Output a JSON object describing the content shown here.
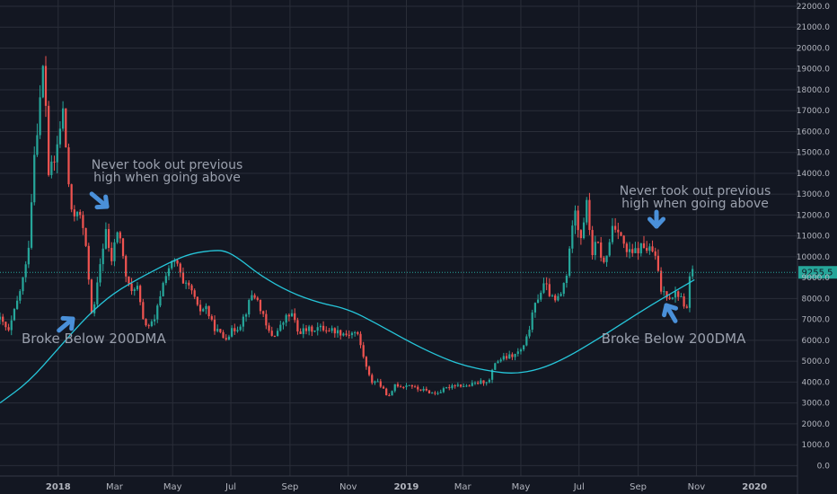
{
  "chart_data": {
    "type": "candlestick",
    "y_axis": {
      "ticks": [
        0,
        1000,
        2000,
        3000,
        4000,
        5000,
        6000,
        7000,
        8000,
        9000,
        10000,
        11000,
        12000,
        13000,
        14000,
        15000,
        16000,
        17000,
        18000,
        19000,
        20000,
        21000,
        22000
      ],
      "tick_labels": [
        "0.0",
        "1000.0",
        "2000.0",
        "3000.0",
        "4000.0",
        "5000.0",
        "6000.0",
        "7000.0",
        "8000.0",
        "9000.0",
        "10000.0",
        "11000.0",
        "12000.0",
        "13000.0",
        "14000.0",
        "15000.0",
        "16000.0",
        "17000.0",
        "18000.0",
        "19000.0",
        "20000.0",
        "21000.0",
        "22000.0"
      ],
      "ylim": [
        -500,
        22300
      ],
      "position": "right"
    },
    "x_axis": {
      "range": [
        "2017-11-01",
        "2020-02-15"
      ],
      "ticks": [
        "2018-01-01",
        "2018-03-01",
        "2018-05-01",
        "2018-07-01",
        "2018-09-01",
        "2018-11-01",
        "2019-01-01",
        "2019-03-01",
        "2019-05-01",
        "2019-07-01",
        "2019-09-01",
        "2019-11-01",
        "2020-01-01"
      ],
      "tick_labels": [
        "2018",
        "Mar",
        "May",
        "Jul",
        "Sep",
        "Nov",
        "2019",
        "Mar",
        "May",
        "Jul",
        "Sep",
        "Nov",
        "2020"
      ],
      "bold_labels": [
        "2018",
        "2019",
        "2020"
      ]
    },
    "grid": true,
    "last_price": {
      "label": "9255.5",
      "value": 9255.5
    },
    "price_path": [
      [
        "2017-11-01",
        7000
      ],
      [
        "2017-11-10",
        6400
      ],
      [
        "2017-11-20",
        8000
      ],
      [
        "2017-11-30",
        9900
      ],
      [
        "2017-12-07",
        15000
      ],
      [
        "2017-12-12",
        17000
      ],
      [
        "2017-12-17",
        19500
      ],
      [
        "2017-12-22",
        14000
      ],
      [
        "2017-12-28",
        14500
      ],
      [
        "2018-01-06",
        17000
      ],
      [
        "2018-01-12",
        13500
      ],
      [
        "2018-01-16",
        11500
      ],
      [
        "2018-01-20",
        12500
      ],
      [
        "2018-01-28",
        11200
      ],
      [
        "2018-02-02",
        9000
      ],
      [
        "2018-02-06",
        6900
      ],
      [
        "2018-02-10",
        8300
      ],
      [
        "2018-02-15",
        10000
      ],
      [
        "2018-02-20",
        11300
      ],
      [
        "2018-02-25",
        9600
      ],
      [
        "2018-03-05",
        11500
      ],
      [
        "2018-03-12",
        9300
      ],
      [
        "2018-03-18",
        8200
      ],
      [
        "2018-03-24",
        8800
      ],
      [
        "2018-03-31",
        6900
      ],
      [
        "2018-04-06",
        6700
      ],
      [
        "2018-04-12",
        6900
      ],
      [
        "2018-04-18",
        8200
      ],
      [
        "2018-04-25",
        9400
      ],
      [
        "2018-05-05",
        9800
      ],
      [
        "2018-05-12",
        8600
      ],
      [
        "2018-05-20",
        8500
      ],
      [
        "2018-05-28",
        7400
      ],
      [
        "2018-06-05",
        7600
      ],
      [
        "2018-06-12",
        6700
      ],
      [
        "2018-06-24",
        6100
      ],
      [
        "2018-07-01",
        6400
      ],
      [
        "2018-07-10",
        6700
      ],
      [
        "2018-07-17",
        7400
      ],
      [
        "2018-07-24",
        8300
      ],
      [
        "2018-07-31",
        7700
      ],
      [
        "2018-08-08",
        6500
      ],
      [
        "2018-08-14",
        6200
      ],
      [
        "2018-08-20",
        6500
      ],
      [
        "2018-08-28",
        7100
      ],
      [
        "2018-09-05",
        7300
      ],
      [
        "2018-09-07",
        6400
      ],
      [
        "2018-09-20",
        6500
      ],
      [
        "2018-10-01",
        6600
      ],
      [
        "2018-10-15",
        6500
      ],
      [
        "2018-10-30",
        6300
      ],
      [
        "2018-11-10",
        6400
      ],
      [
        "2018-11-15",
        5600
      ],
      [
        "2018-11-20",
        4700
      ],
      [
        "2018-11-25",
        4000
      ],
      [
        "2018-12-01",
        4100
      ],
      [
        "2018-12-08",
        3600
      ],
      [
        "2018-12-15",
        3250
      ],
      [
        "2018-12-20",
        3900
      ],
      [
        "2018-12-27",
        3800
      ],
      [
        "2019-01-05",
        3900
      ],
      [
        "2019-01-10",
        3700
      ],
      [
        "2019-01-20",
        3600
      ],
      [
        "2019-01-30",
        3450
      ],
      [
        "2019-02-08",
        3600
      ],
      [
        "2019-02-20",
        3900
      ],
      [
        "2019-03-05",
        3800
      ],
      [
        "2019-03-20",
        4000
      ],
      [
        "2019-03-31",
        4100
      ],
      [
        "2019-04-02",
        4900
      ],
      [
        "2019-04-10",
        5100
      ],
      [
        "2019-04-25",
        5300
      ],
      [
        "2019-05-05",
        5700
      ],
      [
        "2019-05-12",
        7000
      ],
      [
        "2019-05-18",
        8000
      ],
      [
        "2019-05-26",
        8700
      ],
      [
        "2019-06-05",
        7800
      ],
      [
        "2019-06-12",
        8200
      ],
      [
        "2019-06-18",
        9200
      ],
      [
        "2019-06-22",
        10500
      ],
      [
        "2019-06-26",
        13000
      ],
      [
        "2019-06-28",
        12000
      ],
      [
        "2019-07-02",
        10800
      ],
      [
        "2019-07-09",
        12500
      ],
      [
        "2019-07-15",
        10200
      ],
      [
        "2019-07-20",
        10700
      ],
      [
        "2019-07-28",
        9500
      ],
      [
        "2019-08-05",
        11500
      ],
      [
        "2019-08-12",
        11400
      ],
      [
        "2019-08-18",
        10300
      ],
      [
        "2019-08-25",
        10100
      ],
      [
        "2019-09-05",
        10500
      ],
      [
        "2019-09-18",
        10200
      ],
      [
        "2019-09-25",
        8400
      ],
      [
        "2019-10-05",
        8100
      ],
      [
        "2019-10-12",
        8300
      ],
      [
        "2019-10-22",
        7500
      ],
      [
        "2019-10-26",
        9500
      ],
      [
        "2019-10-30",
        9255
      ]
    ],
    "ma200": {
      "label": "200DMA",
      "color": "#26c6da",
      "points": [
        [
          "2017-11-01",
          3000
        ],
        [
          "2017-12-01",
          4000
        ],
        [
          "2018-01-01",
          5600
        ],
        [
          "2018-02-01",
          7200
        ],
        [
          "2018-03-01",
          8300
        ],
        [
          "2018-04-01",
          9100
        ],
        [
          "2018-05-01",
          9800
        ],
        [
          "2018-05-20",
          10150
        ],
        [
          "2018-06-10",
          10300
        ],
        [
          "2018-06-25",
          10300
        ],
        [
          "2018-07-10",
          9900
        ],
        [
          "2018-08-01",
          9100
        ],
        [
          "2018-09-01",
          8300
        ],
        [
          "2018-10-01",
          7800
        ],
        [
          "2018-11-01",
          7500
        ],
        [
          "2018-12-01",
          6800
        ],
        [
          "2019-01-01",
          6000
        ],
        [
          "2019-02-01",
          5300
        ],
        [
          "2019-03-01",
          4800
        ],
        [
          "2019-04-01",
          4500
        ],
        [
          "2019-04-25",
          4400
        ],
        [
          "2019-05-20",
          4600
        ],
        [
          "2019-06-15",
          5100
        ],
        [
          "2019-07-15",
          5900
        ],
        [
          "2019-08-15",
          6800
        ],
        [
          "2019-09-15",
          7700
        ],
        [
          "2019-10-15",
          8500
        ],
        [
          "2019-10-30",
          8900
        ]
      ]
    },
    "annotations": [
      {
        "text_lines": [
          "Never took out previous",
          "high when going above"
        ],
        "anchor": "top-left"
      },
      {
        "text_lines": [
          "Broke Below 200DMA"
        ],
        "anchor": "middle-left"
      },
      {
        "text_lines": [
          "Never took out previous",
          "high when going above"
        ],
        "anchor": "top-right"
      },
      {
        "text_lines": [
          "Broke Below 200DMA"
        ],
        "anchor": "middle-right"
      }
    ],
    "colors": {
      "background": "#131722",
      "grid": "#2a2e39",
      "up": "#26a69a",
      "down": "#ef5350",
      "ma": "#26c6da",
      "price_line": "#26a69a",
      "arrow": "#4a90d9",
      "axis_text": "#b2b5be"
    }
  }
}
